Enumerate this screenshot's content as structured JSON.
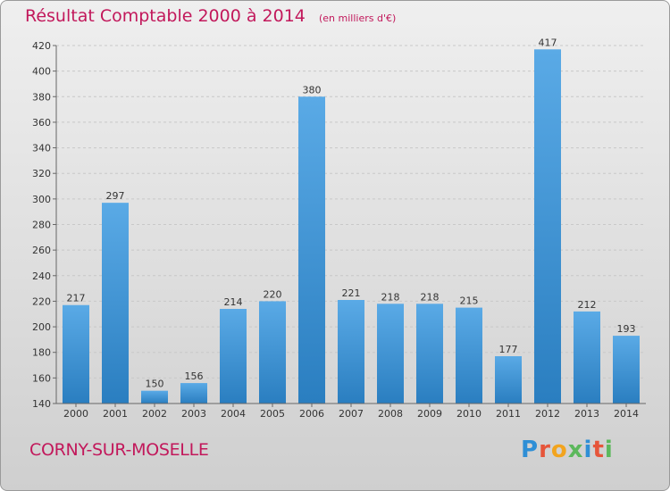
{
  "chart_data": {
    "type": "bar",
    "title": "Résultat Comptable 2000 à 2014",
    "subtitle": "(en milliers d'€)",
    "categories": [
      "2000",
      "2001",
      "2002",
      "2003",
      "2004",
      "2005",
      "2006",
      "2007",
      "2008",
      "2009",
      "2010",
      "2011",
      "2012",
      "2013",
      "2014"
    ],
    "values": [
      217,
      297,
      150,
      156,
      214,
      220,
      380,
      221,
      218,
      218,
      215,
      177,
      417,
      212,
      193
    ],
    "ylim": [
      140,
      420
    ],
    "yticks": [
      140,
      160,
      180,
      200,
      220,
      240,
      260,
      280,
      300,
      320,
      340,
      360,
      380,
      400,
      420
    ],
    "grid": true,
    "bar_color_top": "#5aaae6",
    "bar_color_bottom": "#2a7ec0"
  },
  "footer": {
    "place": "CORNY-SUR-MOSELLE",
    "logo": "Proxiti",
    "logo_colors": [
      "#2f8fd6",
      "#e6553a",
      "#f2a41e",
      "#5cb85c",
      "#2f8fd6",
      "#e6553a",
      "#5cb85c"
    ]
  }
}
